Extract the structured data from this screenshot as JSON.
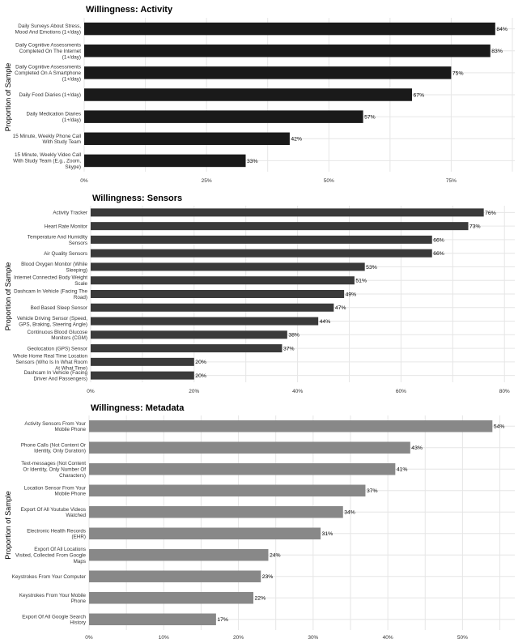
{
  "chart_data": [
    {
      "type": "bar",
      "orientation": "horizontal",
      "title": "Willingness: Activity",
      "ylabel": "Proportion of Sample",
      "xlim": [
        0,
        88
      ],
      "ticks": [
        0,
        25,
        50,
        75
      ],
      "tick_labels": [
        "0%",
        "25%",
        "50%",
        "75%"
      ],
      "color": "#1a1a1a",
      "categories": [
        "Daily Surveys About Stress,|Mood And Emotions (1+/day)",
        "Daily Cognitive Assessments|Completed On The Internet|(1+/day)",
        "Daily Cognitive Assessments|Completed On A Smartphone|(1+/day)",
        "Daily Food Diaries (1+/day)",
        "Daily Medication Diaries|(1+/day)",
        "15 Minute, Weekly Phone Call|With Study Team",
        "15 Minute, Weekly Video Call|With Study Team (E.g., Zoom,|Skype)"
      ],
      "values": [
        84,
        83,
        75,
        67,
        57,
        42,
        33
      ],
      "value_labels": [
        "84%",
        "83%",
        "75%",
        "67%",
        "57%",
        "42%",
        "33%"
      ]
    },
    {
      "type": "bar",
      "orientation": "horizontal",
      "title": "Willingness: Sensors",
      "ylabel": "Proportion of Sample",
      "xlim": [
        0,
        82
      ],
      "ticks": [
        0,
        20,
        40,
        60,
        80
      ],
      "tick_labels": [
        "0%",
        "20%",
        "40%",
        "60%",
        "80%"
      ],
      "color": "#3a3a3a",
      "categories": [
        "Activity Tracker",
        "Heart Rate Monitor",
        "Temperature And Humidity|Sensors",
        "Air Quality Sensors",
        "Blood Oxygen Monitor (While|Sleeping)",
        "Internet Connected Body Weight|Scale",
        "Dashcam In Vehicle (Facing The|Road)",
        "Bed Based Sleep Sensor",
        "Vehicle Driving Sensor (Speed,|GPS, Braking, Steering Angle)",
        "Continuous Blood Glucose|Monitors (CGM)",
        "Geolocation (GPS) Sensor",
        "Whole Home Real Time Location|Sensors (Who Is In What Room|At What Time)",
        "Dashcam In Vehicle (Facing|Driver And Passengers)"
      ],
      "values": [
        76,
        73,
        66,
        66,
        53,
        51,
        49,
        47,
        44,
        38,
        37,
        20,
        20
      ],
      "value_labels": [
        "76%",
        "73%",
        "66%",
        "66%",
        "53%",
        "51%",
        "49%",
        "47%",
        "44%",
        "38%",
        "37%",
        "20%",
        "20%"
      ]
    },
    {
      "type": "bar",
      "orientation": "horizontal",
      "title": "Willingness: Metadata",
      "ylabel": "Proportion of Sample",
      "xlim": [
        0,
        57
      ],
      "ticks": [
        0,
        10,
        20,
        30,
        40,
        50
      ],
      "tick_labels": [
        "0%",
        "10%",
        "20%",
        "30%",
        "40%",
        "50%"
      ],
      "color": "#888888",
      "categories": [
        "Activity Sensors From Your|Mobile Phone",
        "Phone Calls (Not Content Or|Identity, Only Duration)",
        "Text-messages (Not Content|Or Identity, Only Number Of|Characters)",
        "Location Sensor From Your|Mobile Phone",
        "Export Of All Youtube Videos|Watched",
        "Electronic Health Records|(EHR)",
        "Export Of All Locations|Visited, Collected From Google|Maps",
        "Keystrokes From Your Computer",
        "Keystrokes From Your Mobile|Phone",
        "Export Of All Google Search|History"
      ],
      "values": [
        54,
        43,
        41,
        37,
        34,
        31,
        24,
        23,
        22,
        17
      ],
      "value_labels": [
        "54%",
        "43%",
        "41%",
        "37%",
        "34%",
        "31%",
        "24%",
        "23%",
        "22%",
        "17%"
      ]
    }
  ]
}
